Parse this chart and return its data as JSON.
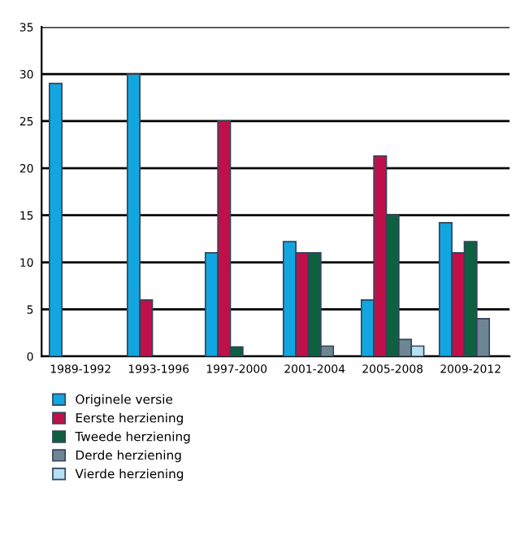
{
  "chart_data": {
    "type": "bar",
    "categories": [
      "1989-1992",
      "1993-1996",
      "1997-2000",
      "2001-2004",
      "2005-2008",
      "2009-2012"
    ],
    "series": [
      {
        "name": "Originele versie",
        "color": "#12a6e0",
        "values": [
          29,
          30,
          11,
          12.2,
          6,
          14.2
        ]
      },
      {
        "name": "Eerste herziening",
        "color": "#c0104a",
        "values": [
          null,
          6,
          25,
          11,
          21.3,
          11
        ]
      },
      {
        "name": "Tweede herziening",
        "color": "#0d6040",
        "values": [
          null,
          null,
          1,
          11,
          15,
          12.2
        ]
      },
      {
        "name": "Derde herziening",
        "color": "#6e8694",
        "values": [
          null,
          null,
          null,
          1.1,
          1.8,
          4
        ]
      },
      {
        "name": "Vierde herziening",
        "color": "#b6dff2",
        "values": [
          null,
          null,
          null,
          null,
          1.1,
          null
        ]
      }
    ],
    "ylim": [
      0,
      35
    ],
    "yticks": [
      0,
      5,
      10,
      15,
      20,
      25,
      30,
      35
    ],
    "grid": "y",
    "legend": "bottom left"
  }
}
